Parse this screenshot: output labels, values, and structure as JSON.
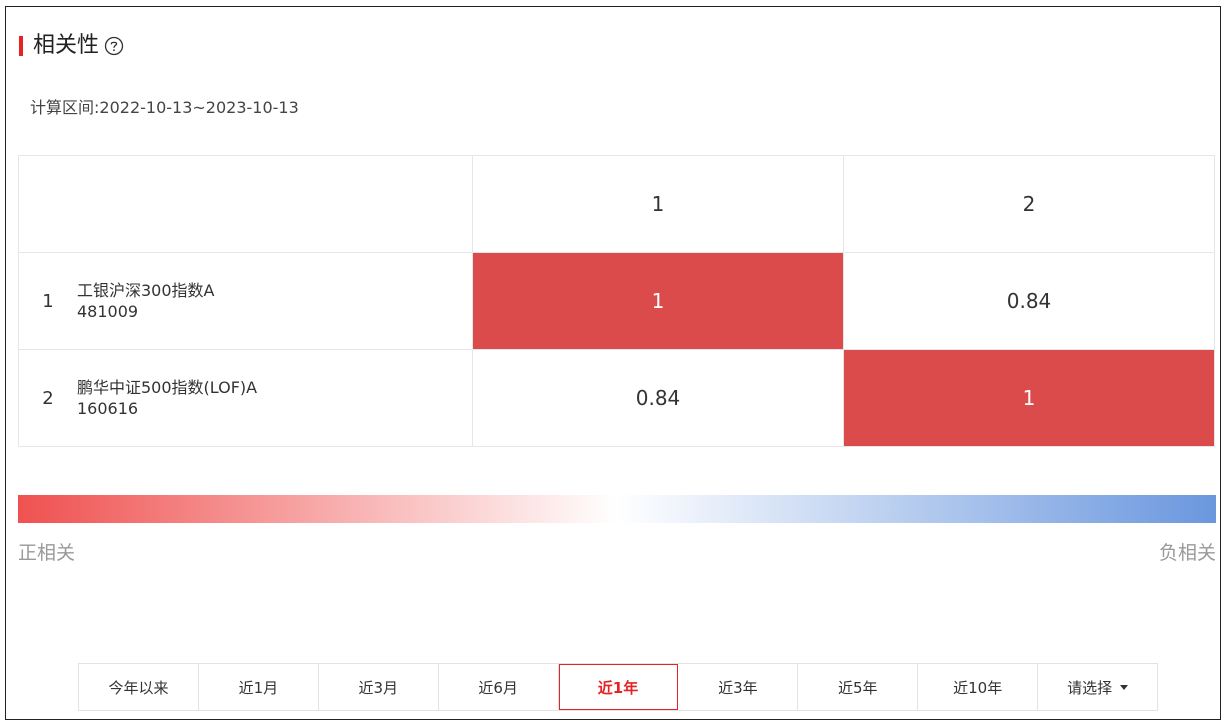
{
  "header": {
    "title": "相关性",
    "help_icon": "question-circle-icon"
  },
  "range": {
    "label": "计算区间:",
    "value": "2022-10-13~2023-10-13"
  },
  "table": {
    "columns": [
      "1",
      "2"
    ],
    "rows": [
      {
        "index": "1",
        "fund_name": "工银沪深300指数A",
        "fund_code": "481009",
        "values": [
          "1",
          "0.84"
        ],
        "highlight": [
          true,
          false
        ]
      },
      {
        "index": "2",
        "fund_name": "鹏华中证500指数(LOF)A",
        "fund_code": "160616",
        "values": [
          "0.84",
          "1"
        ],
        "highlight": [
          false,
          true
        ]
      }
    ]
  },
  "legend": {
    "positive_label": "正相关",
    "negative_label": "负相关",
    "positive_color": "#ef5150",
    "neutral_color": "#ffffff",
    "negative_color": "#6a97de"
  },
  "periods": {
    "items": [
      "今年以来",
      "近1月",
      "近3月",
      "近6月",
      "近1年",
      "近3年",
      "近5年",
      "近10年",
      "请选择"
    ],
    "active": "近1年",
    "accent_color": "#e52323"
  }
}
